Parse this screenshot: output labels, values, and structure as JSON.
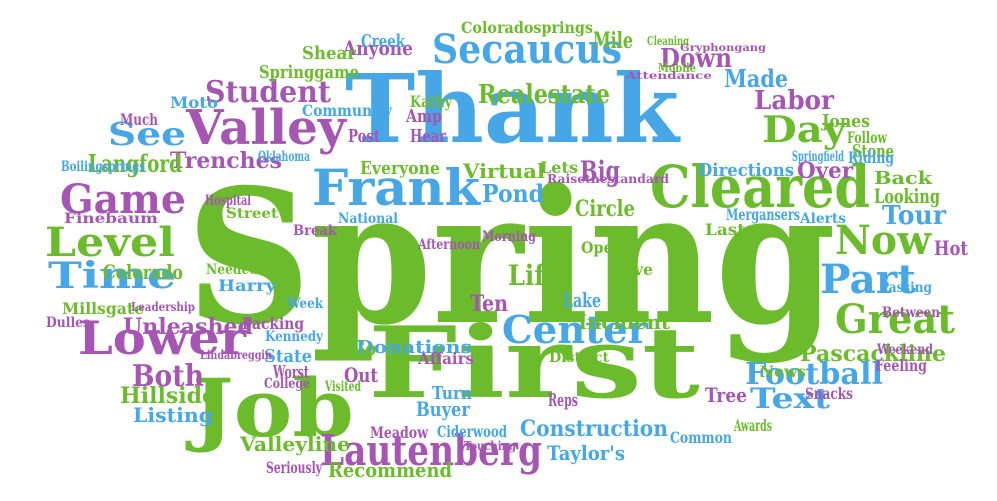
{
  "palette": {
    "green": "#6cbb2c",
    "blue": "#46a6e6",
    "purple": "#a456b2"
  },
  "words": [
    {
      "text": "Spring",
      "color": "green"
    },
    {
      "text": "Thank",
      "color": "blue"
    },
    {
      "text": "First",
      "color": "green"
    },
    {
      "text": "Job",
      "color": "green"
    },
    {
      "text": "Cleared",
      "color": "green"
    },
    {
      "text": "Frank",
      "color": "blue"
    },
    {
      "text": "Valley",
      "color": "purple"
    },
    {
      "text": "Secaucus",
      "color": "blue"
    },
    {
      "text": "Lower",
      "color": "purple"
    },
    {
      "text": "Level",
      "color": "green"
    },
    {
      "text": "Game",
      "color": "purple"
    },
    {
      "text": "Time",
      "color": "blue"
    },
    {
      "text": "Lautenberg",
      "color": "purple"
    },
    {
      "text": "Center",
      "color": "blue"
    },
    {
      "text": "Part",
      "color": "blue"
    },
    {
      "text": "Great",
      "color": "green"
    },
    {
      "text": "Now",
      "color": "green"
    },
    {
      "text": "Day",
      "color": "green"
    },
    {
      "text": "Football",
      "color": "blue"
    },
    {
      "text": "Realestate",
      "color": "green"
    },
    {
      "text": "Student",
      "color": "purple"
    },
    {
      "text": "Text",
      "color": "blue"
    },
    {
      "text": "See",
      "color": "blue"
    },
    {
      "text": "Both",
      "color": "purple"
    },
    {
      "text": "Life",
      "color": "green"
    },
    {
      "text": "Labor",
      "color": "purple"
    },
    {
      "text": "Pond",
      "color": "blue"
    },
    {
      "text": "Big",
      "color": "purple"
    },
    {
      "text": "Made",
      "color": "blue"
    },
    {
      "text": "Down",
      "color": "purple"
    },
    {
      "text": "Anyone",
      "color": "purple"
    },
    {
      "text": "Construction",
      "color": "blue"
    },
    {
      "text": "Hillside",
      "color": "green"
    },
    {
      "text": "Trenches",
      "color": "purple"
    },
    {
      "text": "Langford",
      "color": "green"
    },
    {
      "text": "Tour",
      "color": "blue"
    },
    {
      "text": "Circle",
      "color": "green"
    },
    {
      "text": "Incident",
      "color": "green"
    },
    {
      "text": "Donations",
      "color": "blue"
    },
    {
      "text": "Unleashed",
      "color": "purple"
    },
    {
      "text": "Pascackline",
      "color": "green"
    },
    {
      "text": "Recommend",
      "color": "green"
    },
    {
      "text": "Valleyline",
      "color": "green"
    },
    {
      "text": "Listing",
      "color": "blue"
    },
    {
      "text": "Everyone",
      "color": "green"
    },
    {
      "text": "Virtual",
      "color": "green"
    },
    {
      "text": "Directions",
      "color": "blue"
    },
    {
      "text": "Over",
      "color": "purple"
    },
    {
      "text": "Back",
      "color": "green"
    },
    {
      "text": "Looking",
      "color": "green"
    },
    {
      "text": "Colorado",
      "color": "green"
    },
    {
      "text": "Creek",
      "color": "blue"
    },
    {
      "text": "Shear",
      "color": "green"
    },
    {
      "text": "Springgame",
      "color": "green"
    },
    {
      "text": "Ten",
      "color": "purple"
    },
    {
      "text": "Lake",
      "color": "blue"
    },
    {
      "text": "Go",
      "color": "green"
    },
    {
      "text": "Out",
      "color": "purple"
    },
    {
      "text": "Taylor's",
      "color": "blue"
    },
    {
      "text": "Buyer",
      "color": "blue"
    },
    {
      "text": "Turn",
      "color": "blue"
    },
    {
      "text": "Tree",
      "color": "purple"
    },
    {
      "text": "Reps",
      "color": "purple"
    },
    {
      "text": "Hot",
      "color": "purple"
    },
    {
      "text": "Jones",
      "color": "green"
    },
    {
      "text": "Stone",
      "color": "green"
    },
    {
      "text": "Mile",
      "color": "green"
    },
    {
      "text": "Coloradosprings",
      "color": "green"
    },
    {
      "text": "Hear",
      "color": "purple"
    },
    {
      "text": "Post",
      "color": "purple"
    },
    {
      "text": "Amp",
      "color": "purple"
    },
    {
      "text": "Kathy",
      "color": "green"
    },
    {
      "text": "Community",
      "color": "blue"
    },
    {
      "text": "Moto",
      "color": "blue"
    },
    {
      "text": "Much",
      "color": "purple"
    },
    {
      "text": "Boilingsprings",
      "color": "blue"
    },
    {
      "text": "Finebaum",
      "color": "purple"
    },
    {
      "text": "Street",
      "color": "green"
    },
    {
      "text": "Break",
      "color": "purple"
    },
    {
      "text": "Harry",
      "color": "blue"
    },
    {
      "text": "Needed",
      "color": "green"
    },
    {
      "text": "Millsgate",
      "color": "green"
    },
    {
      "text": "Dulles",
      "color": "purple"
    },
    {
      "text": "Week",
      "color": "blue"
    },
    {
      "text": "Packing",
      "color": "purple"
    },
    {
      "text": "State",
      "color": "blue"
    },
    {
      "text": "Worst",
      "color": "purple"
    },
    {
      "text": "College",
      "color": "purple"
    },
    {
      "text": "Affairs",
      "color": "purple"
    },
    {
      "text": "Meadow",
      "color": "purple"
    },
    {
      "text": "Ciderwood",
      "color": "blue"
    },
    {
      "text": "Seriously",
      "color": "purple"
    },
    {
      "text": "Common",
      "color": "blue"
    },
    {
      "text": "Awards",
      "color": "green"
    },
    {
      "text": "Snacks",
      "color": "purple"
    },
    {
      "text": "Feeling",
      "color": "purple"
    },
    {
      "text": "News",
      "color": "green"
    },
    {
      "text": "Weekend",
      "color": "purple"
    },
    {
      "text": "Between",
      "color": "purple"
    },
    {
      "text": "Passing",
      "color": "blue"
    },
    {
      "text": "Alerts",
      "color": "blue"
    },
    {
      "text": "Mergansers",
      "color": "blue"
    },
    {
      "text": "Last",
      "color": "green"
    },
    {
      "text": "Love",
      "color": "green"
    },
    {
      "text": "Open",
      "color": "green"
    },
    {
      "text": "Lets",
      "color": "green"
    },
    {
      "text": "Morning",
      "color": "purple"
    },
    {
      "text": "Afternoon",
      "color": "purple"
    },
    {
      "text": "National",
      "color": "blue"
    },
    {
      "text": "Hospital",
      "color": "purple"
    },
    {
      "text": "Oklahoma",
      "color": "blue"
    },
    {
      "text": "Follow",
      "color": "green"
    },
    {
      "text": "Riding",
      "color": "blue"
    },
    {
      "text": "Springfield",
      "color": "blue"
    },
    {
      "text": "Raisethestandard",
      "color": "purple"
    },
    {
      "text": "Cleaning",
      "color": "green"
    },
    {
      "text": "Mobile",
      "color": "green"
    },
    {
      "text": "Attendance",
      "color": "purple"
    },
    {
      "text": "Gryphongang",
      "color": "purple"
    },
    {
      "text": "Leadership",
      "color": "purple"
    },
    {
      "text": "Kennedy",
      "color": "blue"
    },
    {
      "text": "Lindabreggin",
      "color": "purple"
    },
    {
      "text": "District",
      "color": "green"
    },
    {
      "text": "Visited",
      "color": "green"
    },
    {
      "text": "Touching",
      "color": "purple"
    }
  ]
}
